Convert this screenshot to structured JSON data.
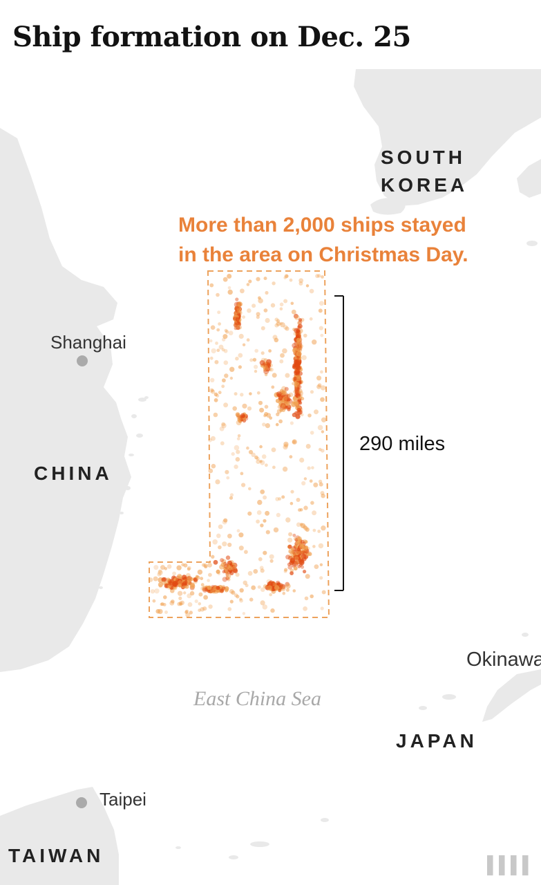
{
  "title": "Ship formation on Dec. 25",
  "annotation": {
    "line1": "More than 2,000 ships stayed",
    "line2": "in the area on Christmas Day."
  },
  "scale_label": "290 miles",
  "countries": {
    "south_korea_line1": "SOUTH",
    "south_korea_line2": "KOREA",
    "china": "CHINA",
    "japan": "JAPAN",
    "taiwan": "TAIWAN"
  },
  "cities": {
    "shanghai": "Shanghai",
    "taipei": "Taipei",
    "okinawa": "Okinawa"
  },
  "sea": "East China Sea",
  "watermark": "▌▌▌▌",
  "colors": {
    "land": "#e9e9e9",
    "water": "#ffffff",
    "ship_dot": "#f0a050",
    "ship_dense": "#e14a12",
    "annotation": "#e9823a",
    "box_outline": "#eda25c",
    "city_marker": "#aaaaaa"
  }
}
